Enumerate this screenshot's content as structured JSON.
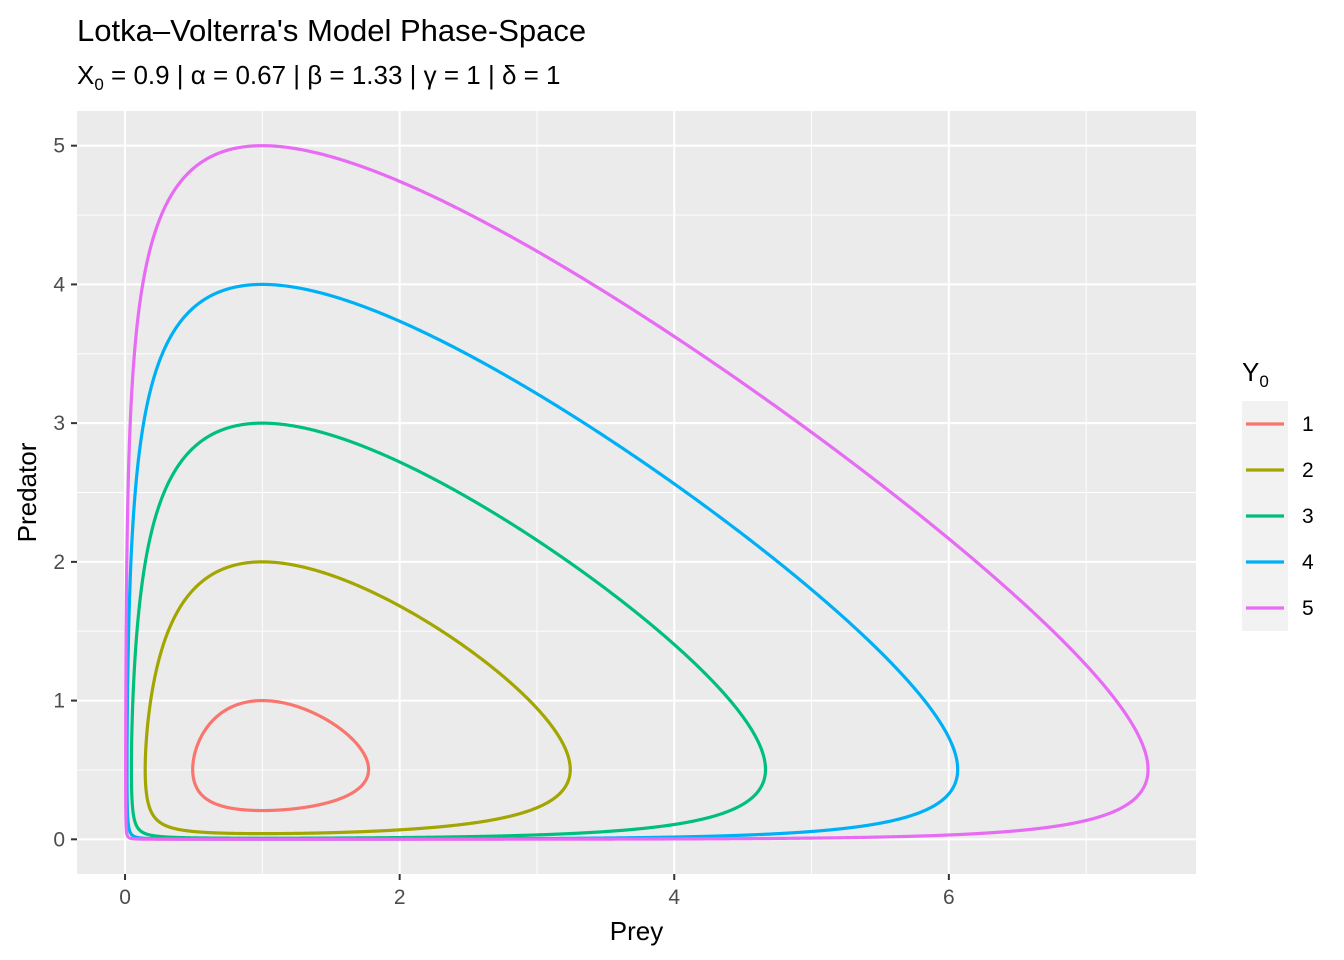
{
  "chart_data": {
    "type": "line",
    "title": "Lotka–Volterra's Model Phase-Space",
    "subtitle_parts": [
      {
        "text": "X"
      },
      {
        "text": "0",
        "sub": true
      },
      {
        "text": " = 0.9 | α = 0.67 | β = 1.33 | γ = 1 | δ = 1"
      }
    ],
    "xlabel": "Prey",
    "ylabel": "Predator",
    "xlim": [
      -0.35,
      7.8
    ],
    "ylim": [
      -0.25,
      5.25
    ],
    "xticks": [
      0,
      2,
      4,
      6
    ],
    "yticks": [
      0,
      1,
      2,
      3,
      4,
      5
    ],
    "grid": true,
    "legend": {
      "title": "Y",
      "title_sub": "0",
      "placement": "right"
    },
    "model": {
      "alpha": 0.67,
      "beta": 1.33,
      "gamma": 1,
      "delta": 1
    },
    "series": [
      {
        "name": "1",
        "color": "#F8766D",
        "x_min": 0.5,
        "x_max": 1.78,
        "y_min": 0.2,
        "y_max": 1.0
      },
      {
        "name": "2",
        "color": "#A3A500",
        "x_min": 0.16,
        "x_max": 3.27,
        "y_min": 0.04,
        "y_max": 2.0
      },
      {
        "name": "3",
        "color": "#00BF7D",
        "x_min": 0.05,
        "x_max": 4.68,
        "y_min": 0.01,
        "y_max": 3.0
      },
      {
        "name": "4",
        "color": "#00B0F6",
        "x_min": 0.02,
        "x_max": 6.08,
        "y_min": 0.003,
        "y_max": 4.0
      },
      {
        "name": "5",
        "color": "#E76BF3",
        "x_min": 0.01,
        "x_max": 7.48,
        "y_min": 0.0006,
        "y_max": 5.0
      }
    ]
  }
}
